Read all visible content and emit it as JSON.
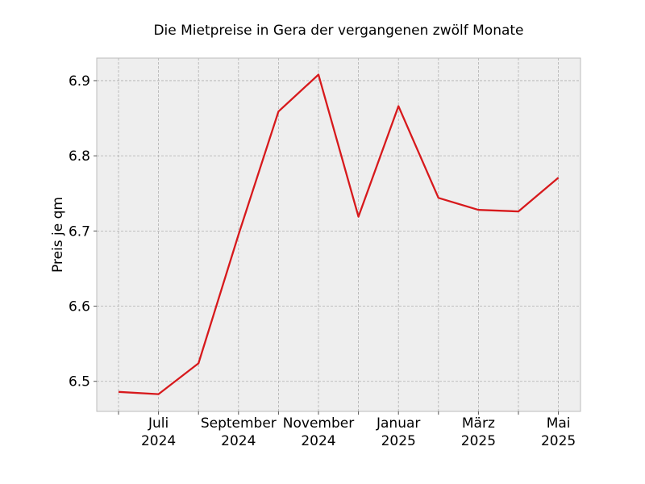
{
  "chart_data": {
    "type": "line",
    "title": "Die Mietpreise in Gera der vergangenen zwölf Monate",
    "xlabel": "",
    "ylabel": "Preis je qm",
    "x": [
      "2024-06",
      "2024-07",
      "2024-08",
      "2024-09",
      "2024-10",
      "2024-11",
      "2024-12",
      "2025-01",
      "2025-02",
      "2025-03",
      "2025-04",
      "2025-05"
    ],
    "series": [
      {
        "values": [
          6.486,
          6.483,
          6.524,
          6.695,
          6.859,
          6.908,
          6.719,
          6.866,
          6.744,
          6.728,
          6.726,
          6.771
        ],
        "color": "#d7191c"
      }
    ],
    "xticks": [
      {
        "x": "2024-07",
        "line1": "Juli",
        "line2": "2024"
      },
      {
        "x": "2024-09",
        "line1": "September",
        "line2": "2024"
      },
      {
        "x": "2024-11",
        "line1": "November",
        "line2": "2024"
      },
      {
        "x": "2025-01",
        "line1": "Januar",
        "line2": "2025"
      },
      {
        "x": "2025-03",
        "line1": "März",
        "line2": "2025"
      },
      {
        "x": "2025-05",
        "line1": "Mai",
        "line2": "2025"
      }
    ],
    "yticks": [
      "6.5",
      "6.6",
      "6.7",
      "6.8",
      "6.9"
    ],
    "ylim": [
      6.46,
      6.93
    ],
    "grid": true,
    "background": "#eeeeee"
  }
}
